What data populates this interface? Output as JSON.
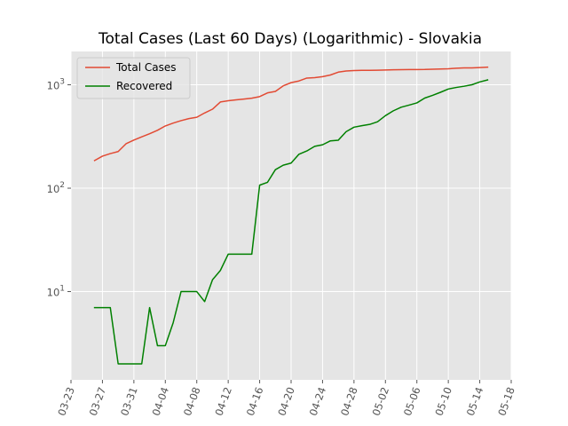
{
  "chart_data": {
    "type": "line",
    "title": "Total Cases (Last 60 Days) (Logarithmic) - Slovakia",
    "xlabel": "",
    "ylabel": "",
    "yscale": "log",
    "xlim": [
      "2020-03-23",
      "2020-05-18"
    ],
    "ylim": [
      1.4,
      2100
    ],
    "grid": true,
    "legend_position": "top-left",
    "background_color": "#e5e5e5",
    "x_tick_labels": [
      "03-23",
      "03-27",
      "03-31",
      "04-04",
      "04-08",
      "04-12",
      "04-16",
      "04-20",
      "04-24",
      "04-28",
      "05-02",
      "05-06",
      "05-10",
      "05-14",
      "05-18"
    ],
    "x_tick_dates": [
      "2020-03-23",
      "2020-03-27",
      "2020-03-31",
      "2020-04-04",
      "2020-04-08",
      "2020-04-12",
      "2020-04-16",
      "2020-04-20",
      "2020-04-24",
      "2020-04-28",
      "2020-05-02",
      "2020-05-06",
      "2020-05-10",
      "2020-05-14",
      "2020-05-18"
    ],
    "y_ticks": [
      {
        "value": 10,
        "base": "10",
        "exp": "1"
      },
      {
        "value": 100,
        "base": "10",
        "exp": "2"
      },
      {
        "value": 1000,
        "base": "10",
        "exp": "3"
      }
    ],
    "x": [
      "2020-03-26",
      "2020-03-27",
      "2020-03-28",
      "2020-03-29",
      "2020-03-30",
      "2020-03-31",
      "2020-04-01",
      "2020-04-02",
      "2020-04-03",
      "2020-04-04",
      "2020-04-05",
      "2020-04-06",
      "2020-04-07",
      "2020-04-08",
      "2020-04-09",
      "2020-04-10",
      "2020-04-11",
      "2020-04-12",
      "2020-04-13",
      "2020-04-14",
      "2020-04-15",
      "2020-04-16",
      "2020-04-17",
      "2020-04-18",
      "2020-04-19",
      "2020-04-20",
      "2020-04-21",
      "2020-04-22",
      "2020-04-23",
      "2020-04-24",
      "2020-04-25",
      "2020-04-26",
      "2020-04-27",
      "2020-04-28",
      "2020-04-29",
      "2020-04-30",
      "2020-05-01",
      "2020-05-02",
      "2020-05-03",
      "2020-05-04",
      "2020-05-05",
      "2020-05-06",
      "2020-05-07",
      "2020-05-08",
      "2020-05-09",
      "2020-05-10",
      "2020-05-11",
      "2020-05-12",
      "2020-05-13",
      "2020-05-14",
      "2020-05-15"
    ],
    "series": [
      {
        "name": "Total Cases",
        "color": "#e24a33",
        "values": [
          185,
          204,
          216,
          226,
          269,
          292,
          314,
          336,
          363,
          400,
          426,
          450,
          471,
          485,
          534,
          581,
          682,
          701,
          715,
          728,
          742,
          769,
          835,
          863,
          977,
          1049,
          1089,
          1161,
          1173,
          1199,
          1244,
          1325,
          1360,
          1373,
          1379,
          1381,
          1384,
          1391,
          1396,
          1399,
          1403,
          1405,
          1406,
          1413,
          1421,
          1429,
          1445,
          1455,
          1457,
          1469,
          1480
        ]
      },
      {
        "name": "Recovered",
        "color": "#008000",
        "values": [
          7,
          7,
          7,
          2,
          2,
          2,
          2,
          7,
          3,
          3,
          5,
          10,
          10,
          10,
          8,
          13,
          16,
          23,
          23,
          23,
          23,
          107,
          114,
          151,
          167,
          175,
          213,
          229,
          254,
          263,
          287,
          291,
          352,
          389,
          402,
          414,
          439,
          503,
          560,
          607,
          636,
          668,
          744,
          790,
          846,
          910,
          942,
          968,
          1001,
          1066,
          1114
        ]
      }
    ]
  }
}
